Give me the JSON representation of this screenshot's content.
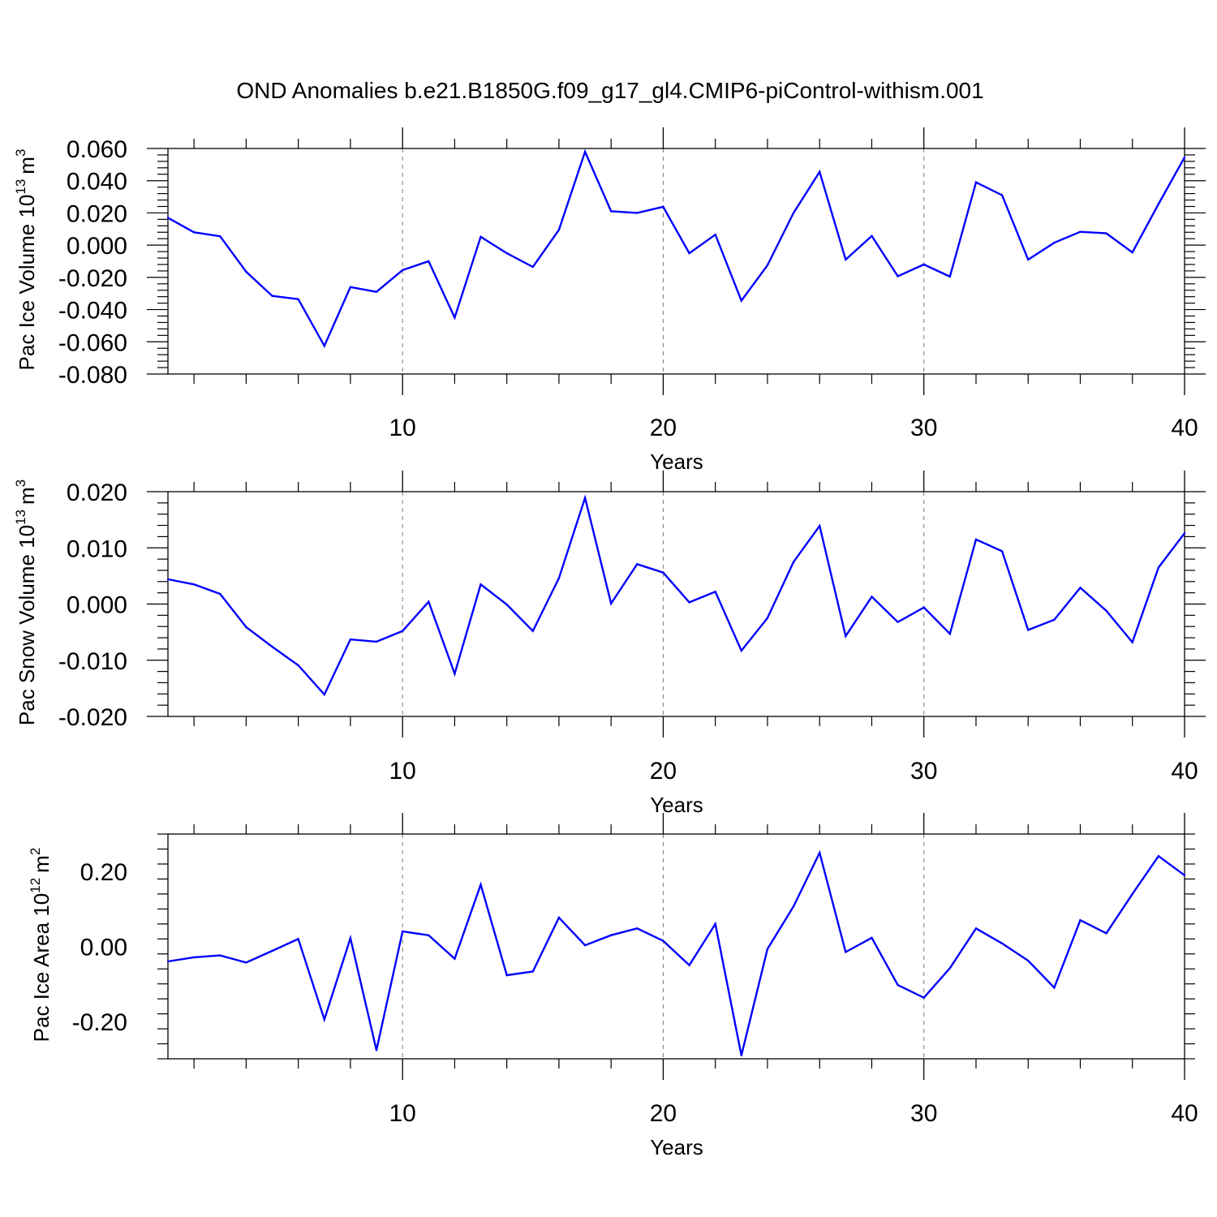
{
  "title": "OND Anomalies b.e21.B1850G.f09_g17_gl4.CMIP6-piControl-withism.001",
  "colors": {
    "line": "#0000ff",
    "axis": "#000000",
    "grid": "#777777"
  },
  "chart_data": [
    {
      "type": "line",
      "xlabel": "Years",
      "ylabel": "Pac Ice Volume 10",
      "ylabel_sup": "13",
      "ylabel_unit": "m",
      "ylabel_unit_sup": "3",
      "xlim": [
        1,
        40
      ],
      "ylim": [
        -0.08,
        0.06
      ],
      "xticks": [
        10,
        20,
        30,
        40
      ],
      "yticks": [
        "-0.080",
        "-0.060",
        "-0.040",
        "-0.020",
        "0.000",
        "0.020",
        "0.040",
        "0.060"
      ],
      "ytick_values": [
        -0.08,
        -0.06,
        -0.04,
        -0.02,
        0.0,
        0.02,
        0.04,
        0.06
      ],
      "grid": "vertical dashed at major x ticks",
      "x": [
        1,
        2,
        3,
        4,
        5,
        6,
        7,
        8,
        9,
        10,
        11,
        12,
        13,
        14,
        15,
        16,
        17,
        18,
        19,
        20,
        21,
        22,
        23,
        24,
        25,
        26,
        27,
        28,
        29,
        30,
        31,
        32,
        33,
        34,
        35,
        36,
        37,
        38,
        39,
        40
      ],
      "series": [
        {
          "values": [
            0.017,
            0.008,
            0.0055,
            -0.0165,
            -0.0315,
            -0.0335,
            -0.0625,
            -0.026,
            -0.029,
            -0.0155,
            -0.01,
            -0.045,
            0.0052,
            -0.005,
            -0.0135,
            0.0095,
            0.058,
            0.021,
            0.02,
            0.0238,
            -0.005,
            0.0065,
            -0.0345,
            -0.0125,
            0.02,
            0.0455,
            -0.009,
            0.0057,
            -0.0193,
            -0.012,
            -0.0195,
            0.039,
            0.031,
            -0.009,
            0.0015,
            0.0083,
            0.0073,
            -0.0045,
            0.0255,
            0.0545
          ]
        }
      ]
    },
    {
      "type": "line",
      "xlabel": "Years",
      "ylabel": "Pac Snow Volume 10",
      "ylabel_sup": "13",
      "ylabel_unit": "m",
      "ylabel_unit_sup": "3",
      "xlim": [
        1,
        40
      ],
      "ylim": [
        -0.02,
        0.02
      ],
      "xticks": [
        10,
        20,
        30,
        40
      ],
      "yticks": [
        "-0.020",
        "-0.010",
        "0.000",
        "0.010",
        "0.020"
      ],
      "ytick_values": [
        -0.02,
        -0.01,
        0.0,
        0.01,
        0.02
      ],
      "grid": "vertical dashed at major x ticks",
      "x": [
        1,
        2,
        3,
        4,
        5,
        6,
        7,
        8,
        9,
        10,
        11,
        12,
        13,
        14,
        15,
        16,
        17,
        18,
        19,
        20,
        21,
        22,
        23,
        24,
        25,
        26,
        27,
        28,
        29,
        30,
        31,
        32,
        33,
        34,
        35,
        36,
        37,
        38,
        39,
        40
      ],
      "series": [
        {
          "values": [
            0.0044,
            0.0035,
            0.0018,
            -0.0041,
            -0.0076,
            -0.0109,
            -0.0161,
            -0.0063,
            -0.0067,
            -0.0048,
            0.0004,
            -0.0124,
            0.0035,
            -0.0001,
            -0.0048,
            0.0046,
            0.0189,
            0.0001,
            0.0071,
            0.0056,
            0.0003,
            0.0022,
            -0.0083,
            -0.0025,
            0.0075,
            0.0139,
            -0.0057,
            0.0013,
            -0.0032,
            -0.0006,
            -0.0053,
            0.0115,
            0.0094,
            -0.0046,
            -0.0028,
            0.0029,
            -0.0012,
            -0.0068,
            0.0065,
            0.0126
          ]
        }
      ]
    },
    {
      "type": "line",
      "xlabel": "Years",
      "ylabel": "Pac Ice Area 10",
      "ylabel_sup": "12",
      "ylabel_unit": "m",
      "ylabel_unit_sup": "2",
      "xlim": [
        1,
        40
      ],
      "ylim": [
        -0.3,
        0.3
      ],
      "xticks": [
        10,
        20,
        30,
        40
      ],
      "yticks": [
        "-0.20",
        "0.00",
        "0.20"
      ],
      "ytick_values": [
        -0.2,
        0.0,
        0.2
      ],
      "grid": "vertical dashed at major x ticks",
      "x": [
        1,
        2,
        3,
        4,
        5,
        6,
        7,
        8,
        9,
        10,
        11,
        12,
        13,
        14,
        15,
        16,
        17,
        18,
        19,
        20,
        21,
        22,
        23,
        24,
        25,
        26,
        27,
        28,
        29,
        30,
        31,
        32,
        33,
        34,
        35,
        36,
        37,
        38,
        39,
        40
      ],
      "series": [
        {
          "values": [
            -0.04,
            -0.029,
            -0.024,
            -0.043,
            -0.012,
            0.02,
            -0.195,
            0.022,
            -0.277,
            0.04,
            0.03,
            -0.033,
            0.165,
            -0.077,
            -0.067,
            0.077,
            0.003,
            0.03,
            0.048,
            0.015,
            -0.05,
            0.06,
            -0.291,
            -0.007,
            0.107,
            0.25,
            -0.015,
            0.023,
            -0.103,
            -0.137,
            -0.058,
            0.048,
            0.008,
            -0.038,
            -0.11,
            0.07,
            0.035,
            0.14,
            0.241,
            0.19
          ]
        }
      ]
    }
  ]
}
